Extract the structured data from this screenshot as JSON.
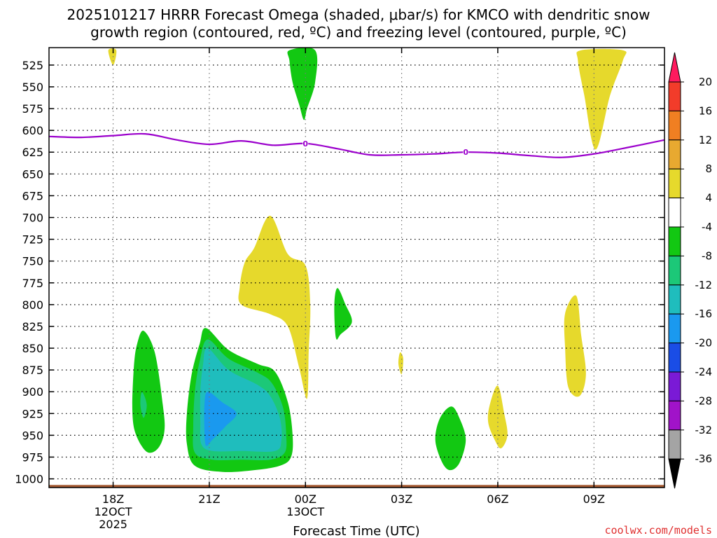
{
  "chart_data": {
    "type": "contour",
    "title_line1": "2025101217 HRRR Forecast Omega (shaded, μbar/s) for KMCO with dendritic snow",
    "title_line2": "growth region (contoured, red, ºC) and freezing level (contoured, purple, ºC)",
    "xlabel": "Forecast Time (UTC)",
    "credit": "coolwx.com/models",
    "x_ticks": [
      {
        "h": 1,
        "lines": [
          "18Z",
          "12OCT",
          "2025"
        ]
      },
      {
        "h": 4,
        "lines": [
          "21Z"
        ]
      },
      {
        "h": 7,
        "lines": [
          "00Z",
          "13OCT"
        ]
      },
      {
        "h": 10,
        "lines": [
          "03Z"
        ]
      },
      {
        "h": 13,
        "lines": [
          "06Z"
        ]
      },
      {
        "h": 16,
        "lines": [
          "09Z"
        ]
      }
    ],
    "xlim": [
      -1.0,
      18.2
    ],
    "ylim_hpa": [
      505,
      1010
    ],
    "y_ticks": [
      525,
      550,
      575,
      600,
      625,
      650,
      675,
      700,
      725,
      750,
      775,
      800,
      825,
      850,
      875,
      900,
      925,
      950,
      975,
      1000
    ],
    "colorbar": {
      "labels": [
        "20",
        "16",
        "12",
        "8",
        "4",
        "-4",
        "-8",
        "-12",
        "-16",
        "-20",
        "-24",
        "-28",
        "-32",
        "-36"
      ],
      "colors": [
        "#ff1a5e",
        "#f23c2a",
        "#f07f22",
        "#e8a930",
        "#e6d92c",
        "#ffffff",
        "#12c812",
        "#1cc878",
        "#1fbdbd",
        "#1a99ef",
        "#1a4de6",
        "#7a1ad6",
        "#a113c9",
        "#a4a4a4",
        "#000000"
      ]
    },
    "freezing_level": {
      "label": "0",
      "label_at_h": [
        7,
        12
      ],
      "points": [
        [
          -1.0,
          607
        ],
        [
          0.0,
          608
        ],
        [
          1.0,
          606
        ],
        [
          2.0,
          604
        ],
        [
          3.0,
          611
        ],
        [
          4.0,
          616
        ],
        [
          5.0,
          612
        ],
        [
          6.0,
          617
        ],
        [
          7.0,
          615
        ],
        [
          8.0,
          621
        ],
        [
          9.0,
          628
        ],
        [
          10.0,
          628
        ],
        [
          11.0,
          627
        ],
        [
          12.0,
          625
        ],
        [
          13.0,
          626
        ],
        [
          14.0,
          629
        ],
        [
          15.0,
          631
        ],
        [
          16.0,
          627
        ],
        [
          17.0,
          620
        ],
        [
          18.2,
          611
        ]
      ]
    },
    "omega_regions": [
      {
        "name": "yellow-top-left",
        "value": 4,
        "color": "#e6d92c",
        "points": [
          [
            0.85,
            508
          ],
          [
            1.1,
            508
          ],
          [
            1.0,
            525
          ]
        ]
      },
      {
        "name": "green-top-center",
        "value": -4,
        "color": "#12c812",
        "points": [
          [
            6.5,
            508
          ],
          [
            7.3,
            508
          ],
          [
            7.3,
            545
          ],
          [
            7.05,
            575
          ],
          [
            6.95,
            588
          ],
          [
            6.8,
            570
          ],
          [
            6.6,
            545
          ],
          [
            6.5,
            520
          ]
        ]
      },
      {
        "name": "yellow-top-right",
        "value": 4,
        "color": "#e6d92c",
        "points": [
          [
            15.6,
            508
          ],
          [
            16.9,
            508
          ],
          [
            16.9,
            520
          ],
          [
            16.5,
            560
          ],
          [
            16.05,
            622
          ],
          [
            15.7,
            560
          ],
          [
            15.5,
            520
          ]
        ]
      },
      {
        "name": "yellow-mid",
        "value": 4,
        "color": "#e6d92c",
        "points": [
          [
            5.9,
            698
          ],
          [
            6.45,
            742
          ],
          [
            7.0,
            755
          ],
          [
            7.15,
            800
          ],
          [
            7.1,
            855
          ],
          [
            7.05,
            908
          ],
          [
            6.8,
            872
          ],
          [
            6.45,
            825
          ],
          [
            5.9,
            811
          ],
          [
            5.0,
            800
          ],
          [
            4.95,
            780
          ],
          [
            5.1,
            752
          ],
          [
            5.4,
            735
          ]
        ]
      },
      {
        "name": "green-small-center",
        "value": -4,
        "color": "#12c812",
        "points": [
          [
            8.0,
            781
          ],
          [
            8.25,
            800
          ],
          [
            8.45,
            820
          ],
          [
            8.1,
            834
          ],
          [
            7.95,
            838
          ],
          [
            7.9,
            800
          ]
        ]
      },
      {
        "name": "yellow-tiny-center",
        "value": 4,
        "color": "#e6d92c",
        "points": [
          [
            9.95,
            855
          ],
          [
            10.05,
            862
          ],
          [
            10.0,
            880
          ],
          [
            9.9,
            868
          ]
        ]
      },
      {
        "name": "green-left",
        "value": -4,
        "color": "#12c812",
        "points": [
          [
            1.95,
            830
          ],
          [
            2.3,
            855
          ],
          [
            2.55,
            915
          ],
          [
            2.6,
            945
          ],
          [
            2.4,
            965
          ],
          [
            2.05,
            969
          ],
          [
            1.7,
            948
          ],
          [
            1.6,
            920
          ],
          [
            1.65,
            870
          ],
          [
            1.75,
            845
          ]
        ]
      },
      {
        "name": "cyan-left-small",
        "value": -12,
        "color": "#1cc878",
        "points": [
          [
            1.9,
            900
          ],
          [
            2.05,
            915
          ],
          [
            1.95,
            930
          ],
          [
            1.85,
            915
          ]
        ]
      },
      {
        "name": "green-right-small",
        "value": -4,
        "color": "#12c812",
        "points": [
          [
            11.55,
            917
          ],
          [
            11.8,
            930
          ],
          [
            12.0,
            955
          ],
          [
            11.8,
            982
          ],
          [
            11.5,
            990
          ],
          [
            11.25,
            980
          ],
          [
            11.05,
            955
          ],
          [
            11.2,
            930
          ]
        ]
      },
      {
        "name": "yellow-right-small",
        "value": 4,
        "color": "#e6d92c",
        "points": [
          [
            13.0,
            893
          ],
          [
            13.2,
            925
          ],
          [
            13.3,
            950
          ],
          [
            13.1,
            965
          ],
          [
            12.9,
            955
          ],
          [
            12.7,
            935
          ],
          [
            12.75,
            915
          ]
        ]
      },
      {
        "name": "yellow-right-tall",
        "value": 4,
        "color": "#e6d92c",
        "points": [
          [
            15.45,
            790
          ],
          [
            15.6,
            835
          ],
          [
            15.75,
            880
          ],
          [
            15.55,
            905
          ],
          [
            15.2,
            895
          ],
          [
            15.1,
            850
          ],
          [
            15.1,
            810
          ]
        ]
      }
    ],
    "omega_core": [
      {
        "name": "core-green",
        "value": -4,
        "color": "#12c812",
        "points": [
          [
            3.9,
            827
          ],
          [
            4.6,
            852
          ],
          [
            5.5,
            868
          ],
          [
            6.05,
            877
          ],
          [
            6.45,
            912
          ],
          [
            6.6,
            950
          ],
          [
            6.55,
            975
          ],
          [
            6.2,
            985
          ],
          [
            5.4,
            990
          ],
          [
            4.4,
            992
          ],
          [
            3.55,
            985
          ],
          [
            3.3,
            960
          ],
          [
            3.3,
            925
          ],
          [
            3.45,
            880
          ],
          [
            3.7,
            845
          ]
        ]
      },
      {
        "name": "core-teal",
        "value": -8,
        "color": "#1cc878",
        "points": [
          [
            3.95,
            840
          ],
          [
            4.6,
            862
          ],
          [
            5.5,
            878
          ],
          [
            5.95,
            890
          ],
          [
            6.3,
            918
          ],
          [
            6.4,
            950
          ],
          [
            6.35,
            970
          ],
          [
            5.9,
            978
          ],
          [
            5.0,
            978
          ],
          [
            4.1,
            978
          ],
          [
            3.55,
            970
          ],
          [
            3.5,
            940
          ],
          [
            3.55,
            900
          ],
          [
            3.7,
            865
          ]
        ]
      },
      {
        "name": "core-cyan",
        "value": -12,
        "color": "#1fbdbd",
        "points": [
          [
            3.95,
            850
          ],
          [
            4.6,
            875
          ],
          [
            5.5,
            892
          ],
          [
            5.9,
            905
          ],
          [
            6.2,
            930
          ],
          [
            6.25,
            955
          ],
          [
            6.05,
            968
          ],
          [
            5.0,
            968
          ],
          [
            4.1,
            968
          ],
          [
            3.75,
            960
          ],
          [
            3.72,
            935
          ],
          [
            3.72,
            900
          ],
          [
            3.8,
            870
          ]
        ]
      },
      {
        "name": "core-blue",
        "value": -16,
        "color": "#1a99ef",
        "points": [
          [
            3.95,
            900
          ],
          [
            4.4,
            912
          ],
          [
            4.85,
            925
          ],
          [
            4.5,
            940
          ],
          [
            4.1,
            955
          ],
          [
            3.9,
            962
          ],
          [
            3.85,
            945
          ],
          [
            3.85,
            915
          ]
        ]
      }
    ],
    "ground_surface": {
      "color": "#a55a32",
      "pressure": 1007
    }
  }
}
